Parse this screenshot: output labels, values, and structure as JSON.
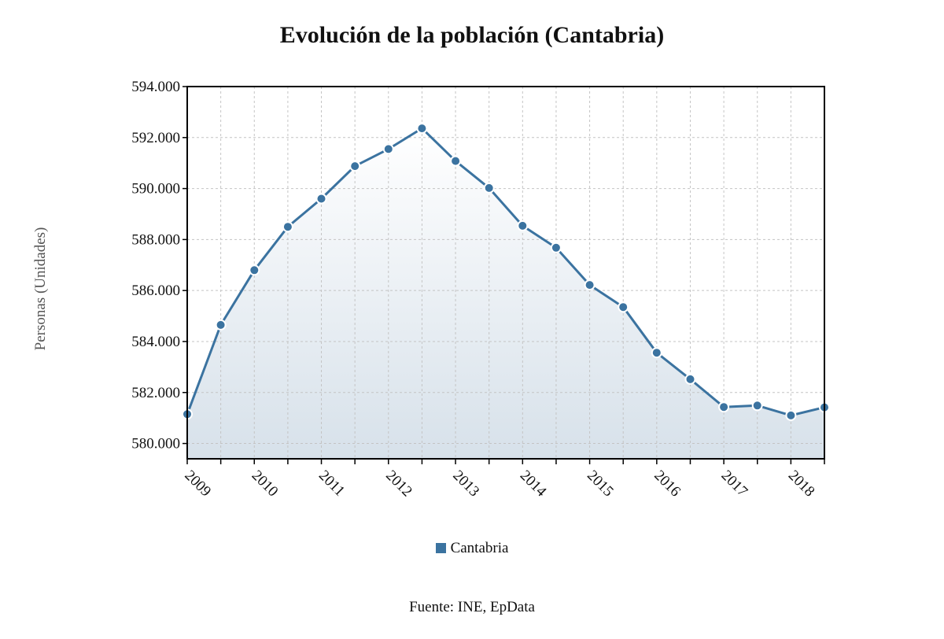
{
  "source_text": "Fuente: INE, EpData",
  "chart_data": {
    "type": "area",
    "title": "Evolución de la población (Cantabria)",
    "xlabel": "",
    "ylabel": "Personas (Unidades)",
    "ylim": [
      579400,
      594000
    ],
    "y_ticks": [
      580000,
      582000,
      584000,
      586000,
      588000,
      590000,
      592000,
      594000
    ],
    "y_tick_labels": [
      "580.000",
      "582.000",
      "584.000",
      "586.000",
      "588.000",
      "590.000",
      "592.000",
      "594.000"
    ],
    "x_tick_labels": [
      "2009",
      "2010",
      "2011",
      "2012",
      "2013",
      "2014",
      "2015",
      "2016",
      "2017",
      "2018"
    ],
    "grid": true,
    "legend_position": "bottom",
    "series": [
      {
        "name": "Cantabria",
        "color": "#3b73a0",
        "x": [
          "2009-01",
          "2009-07",
          "2010-01",
          "2010-07",
          "2011-01",
          "2011-07",
          "2012-01",
          "2012-07",
          "2013-01",
          "2013-07",
          "2014-01",
          "2014-07",
          "2015-01",
          "2015-07",
          "2016-01",
          "2016-07",
          "2017-01",
          "2017-07",
          "2018-01",
          "2018-07"
        ],
        "values": [
          581150,
          584650,
          586800,
          588500,
          589600,
          590880,
          591550,
          592360,
          591080,
          590020,
          588540,
          587680,
          586220,
          585350,
          583560,
          582520,
          581430,
          581490,
          581100,
          581420
        ]
      }
    ]
  }
}
